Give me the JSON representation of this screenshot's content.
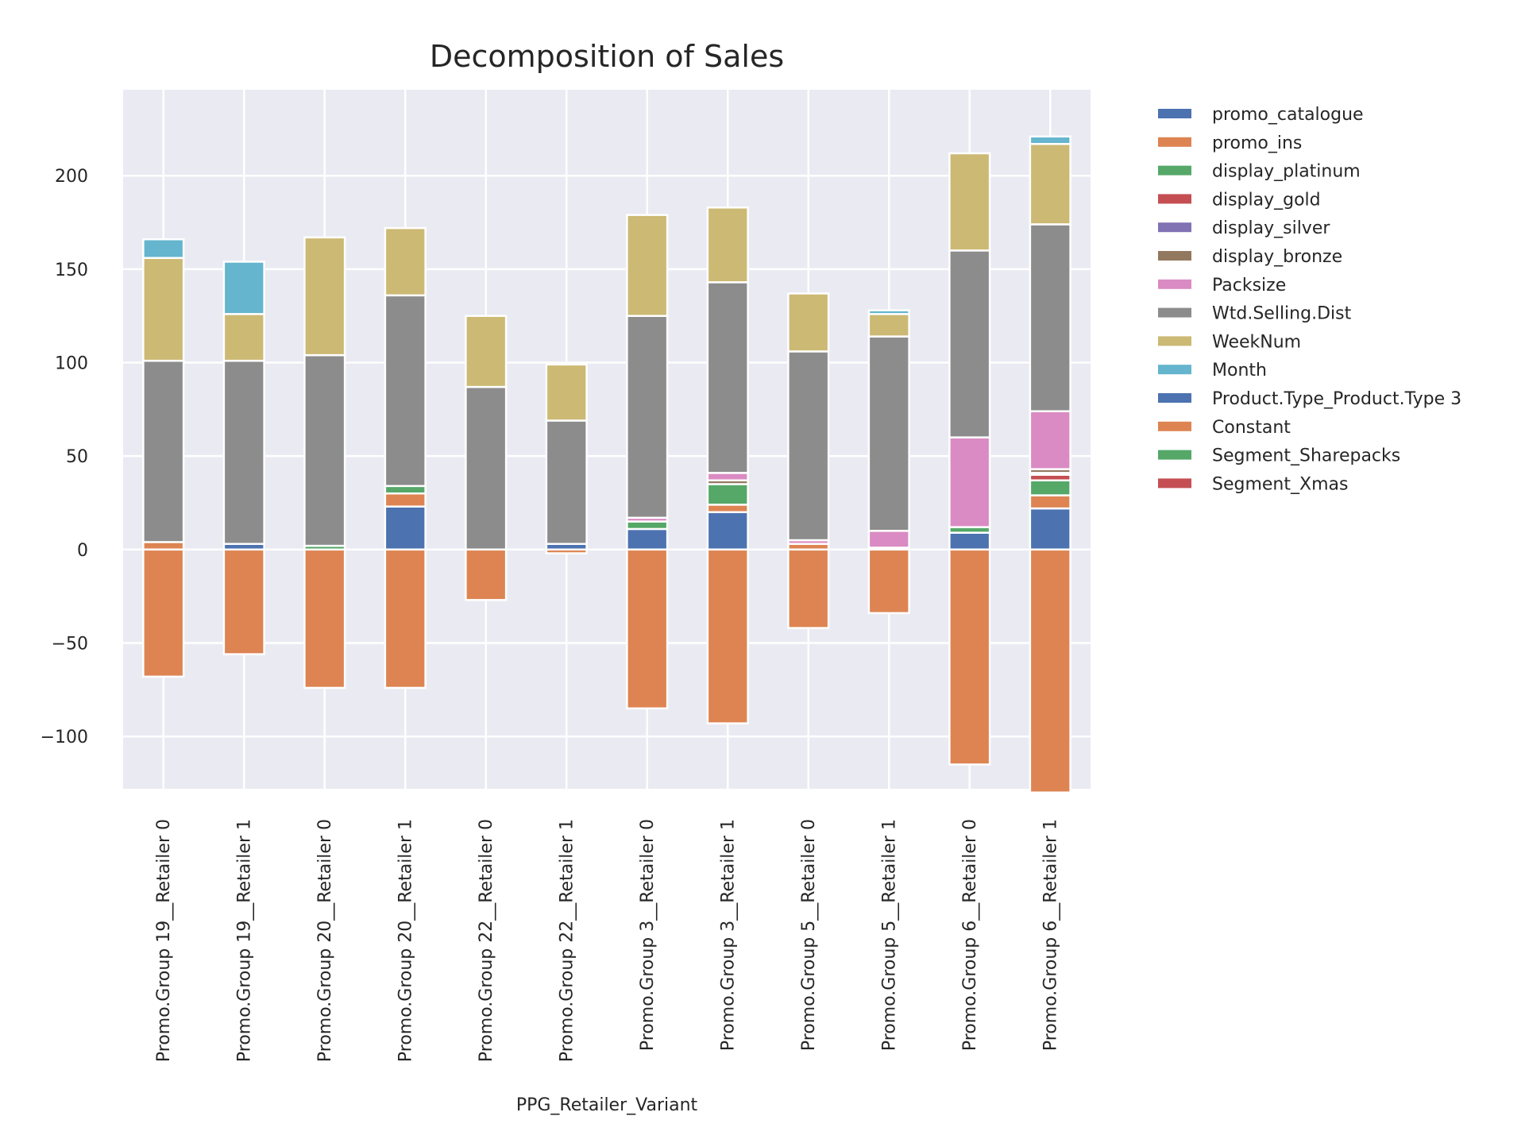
{
  "chart_data": {
    "type": "bar",
    "stacked": true,
    "title": "Decomposition of Sales",
    "xlabel": "PPG_Retailer_Variant",
    "ylabel": "",
    "ylim": [
      -128,
      246
    ],
    "yticks": [
      -100,
      -50,
      0,
      50,
      100,
      150,
      200
    ],
    "grid": true,
    "legend_position": "outside-right",
    "background": "#eaeaf2",
    "categories": [
      "Promo.Group 19__Retailer 0",
      "Promo.Group 19__Retailer 1",
      "Promo.Group 20__Retailer 0",
      "Promo.Group 20__Retailer 1",
      "Promo.Group 22__Retailer 0",
      "Promo.Group 22__Retailer 1",
      "Promo.Group 3__Retailer 0",
      "Promo.Group 3__Retailer 1",
      "Promo.Group 5__Retailer 0",
      "Promo.Group 5__Retailer 1",
      "Promo.Group 6__Retailer 0",
      "Promo.Group 6__Retailer 1"
    ],
    "series": [
      {
        "name": "promo_catalogue",
        "color": "#4c72b0",
        "values": [
          0,
          3,
          0,
          23,
          0,
          3,
          11,
          20,
          0,
          1,
          9,
          22
        ]
      },
      {
        "name": "promo_ins",
        "color": "#dd8452",
        "values": [
          4,
          0,
          0,
          7,
          0,
          0,
          0,
          4,
          3,
          0,
          0,
          7
        ]
      },
      {
        "name": "display_platinum",
        "color": "#55a868",
        "values": [
          0,
          0,
          2,
          4,
          0,
          0,
          4,
          11,
          0,
          0,
          3,
          8
        ]
      },
      {
        "name": "display_gold",
        "color": "#c44e52",
        "values": [
          0,
          0,
          0,
          0,
          0,
          0,
          0,
          0,
          0,
          0,
          0,
          3
        ]
      },
      {
        "name": "display_silver",
        "color": "#8172b3",
        "values": [
          0,
          0,
          0,
          0,
          0,
          0,
          0,
          0,
          0,
          0,
          0,
          1
        ]
      },
      {
        "name": "display_bronze",
        "color": "#937860",
        "values": [
          0,
          0,
          0,
          0,
          0,
          0,
          0,
          2,
          0,
          0,
          0,
          2
        ]
      },
      {
        "name": "Packsize",
        "color": "#da8bc3",
        "values": [
          0,
          0,
          0,
          0,
          0,
          0,
          2,
          4,
          2,
          9,
          48,
          31
        ]
      },
      {
        "name": "Wtd.Selling.Dist",
        "color": "#8c8c8c",
        "values": [
          97,
          98,
          102,
          102,
          87,
          66,
          108,
          102,
          101,
          104,
          100,
          100
        ]
      },
      {
        "name": "WeekNum",
        "color": "#ccb974",
        "values": [
          55,
          25,
          63,
          36,
          38,
          30,
          54,
          40,
          31,
          12,
          52,
          43
        ]
      },
      {
        "name": "Month",
        "color": "#64b5cd",
        "values": [
          10,
          28,
          0,
          0,
          0,
          0,
          0,
          0,
          0,
          2,
          0,
          4
        ]
      },
      {
        "name": "Product.Type_Product.Type 3",
        "color": "#4c72b0",
        "values": [
          0,
          0,
          0,
          0,
          0,
          0,
          0,
          0,
          0,
          0,
          0,
          0
        ]
      },
      {
        "name": "Constant",
        "color": "#dd8452",
        "values": [
          -68,
          -56,
          -74,
          -74,
          -27,
          -2,
          -85,
          -93,
          -42,
          -34,
          -115,
          -130
        ]
      },
      {
        "name": "Segment_Sharepacks",
        "color": "#55a868",
        "values": [
          0,
          0,
          0,
          0,
          0,
          0,
          0,
          0,
          0,
          0,
          0,
          0
        ]
      },
      {
        "name": "Segment_Xmas",
        "color": "#c44e52",
        "values": [
          0,
          0,
          0,
          0,
          0,
          0,
          0,
          0,
          0,
          0,
          0,
          0
        ]
      }
    ]
  }
}
